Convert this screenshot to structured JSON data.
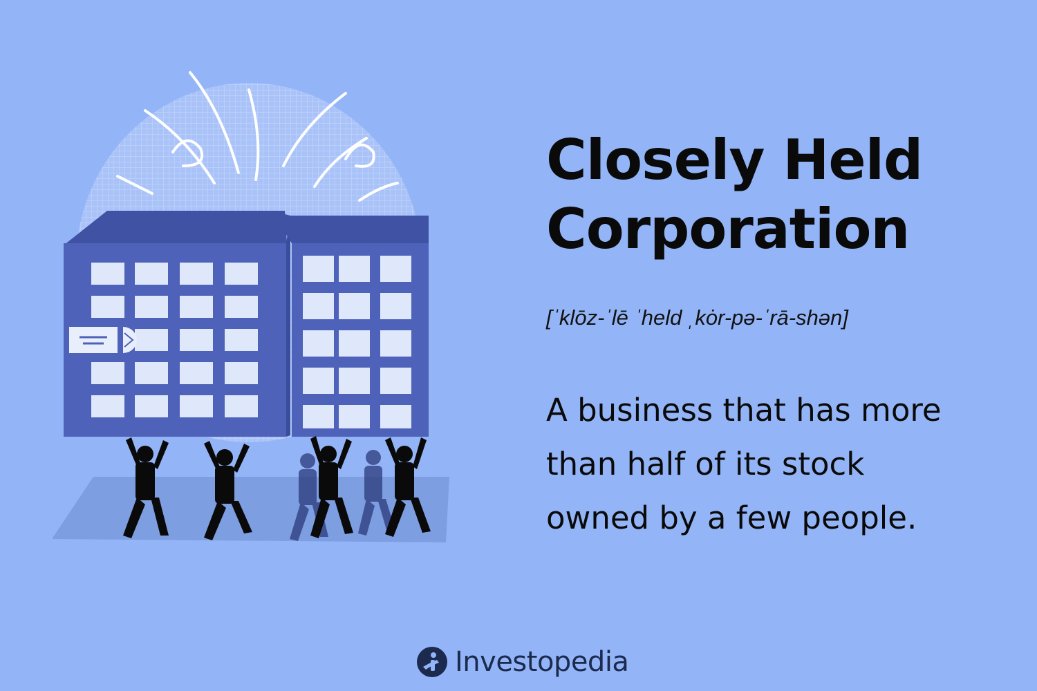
{
  "title": {
    "line1": "Closely Held",
    "line2": "Corporation"
  },
  "pronunciation": "[ˈklōz-ˈlē ˈheld ˌkȯr-pə-ˈrā-shən]",
  "definition": {
    "line1": "A business that has more",
    "line2": "than half of its stock",
    "line3": "owned by a few people."
  },
  "brand": {
    "name": "Investopedia",
    "icon": "investopedia-logo-icon"
  },
  "illustration": {
    "subject": "two office buildings held up by people",
    "icons": [
      "burst-lines-icon",
      "building-icon",
      "people-silhouettes-icon"
    ]
  },
  "colors": {
    "background": "#93b5f7",
    "building": "#4a5fb4",
    "building_dark": "#3a4d9c",
    "window": "#dfe8fb",
    "people": "#0a0a0a",
    "brand": "#1b2a4e"
  }
}
